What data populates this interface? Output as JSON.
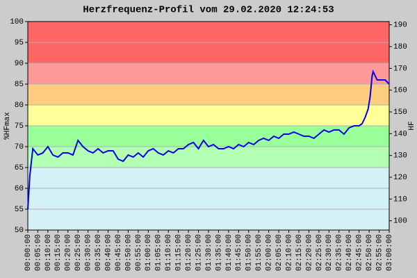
{
  "chart_data": {
    "type": "line",
    "title": "Herzfrequenz-Profil vom 29.02.2020 12:24:53",
    "y_label": "%HFmax",
    "y2_label": "HF",
    "xlim": [
      0,
      180
    ],
    "xticks": [
      {
        "value": 0,
        "label": "00:00:00"
      },
      {
        "value": 5,
        "label": "00:05:00"
      },
      {
        "value": 10,
        "label": "00:10:00"
      },
      {
        "value": 15,
        "label": "00:15:00"
      },
      {
        "value": 20,
        "label": "00:20:00"
      },
      {
        "value": 25,
        "label": "00:25:00"
      },
      {
        "value": 30,
        "label": "00:30:00"
      },
      {
        "value": 35,
        "label": "00:35:00"
      },
      {
        "value": 40,
        "label": "00:40:00"
      },
      {
        "value": 45,
        "label": "00:45:00"
      },
      {
        "value": 50,
        "label": "00:50:00"
      },
      {
        "value": 55,
        "label": "00:55:00"
      },
      {
        "value": 60,
        "label": "01:00:00"
      },
      {
        "value": 65,
        "label": "01:05:00"
      },
      {
        "value": 70,
        "label": "01:10:00"
      },
      {
        "value": 75,
        "label": "01:15:00"
      },
      {
        "value": 80,
        "label": "01:20:00"
      },
      {
        "value": 85,
        "label": "01:25:00"
      },
      {
        "value": 90,
        "label": "01:30:00"
      },
      {
        "value": 95,
        "label": "01:35:00"
      },
      {
        "value": 100,
        "label": "01:40:00"
      },
      {
        "value": 105,
        "label": "01:45:00"
      },
      {
        "value": 110,
        "label": "01:50:00"
      },
      {
        "value": 115,
        "label": "01:55:00"
      },
      {
        "value": 120,
        "label": "02:00:00"
      },
      {
        "value": 125,
        "label": "02:05:00"
      },
      {
        "value": 130,
        "label": "02:10:00"
      },
      {
        "value": 135,
        "label": "02:15:00"
      },
      {
        "value": 140,
        "label": "02:20:00"
      },
      {
        "value": 145,
        "label": "02:25:00"
      },
      {
        "value": 150,
        "label": "02:30:00"
      },
      {
        "value": 155,
        "label": "02:35:00"
      },
      {
        "value": 160,
        "label": "02:40:00"
      },
      {
        "value": 165,
        "label": "02:45:00"
      },
      {
        "value": 170,
        "label": "02:50:00"
      },
      {
        "value": 175,
        "label": "02:55:00"
      },
      {
        "value": 180,
        "label": "03:00:00"
      }
    ],
    "ylim": [
      50,
      100
    ],
    "yticks": [
      50,
      55,
      60,
      65,
      70,
      75,
      80,
      85,
      90,
      95,
      100
    ],
    "y2lim": [
      95.75,
      191.5
    ],
    "y2ticks": [
      100,
      110,
      120,
      130,
      140,
      150,
      160,
      170,
      180,
      190
    ],
    "grid": true,
    "zones": [
      {
        "from": 50,
        "to": 65,
        "color": "#d3f1f7"
      },
      {
        "from": 65,
        "to": 70,
        "color": "#b3ffb3"
      },
      {
        "from": 70,
        "to": 75,
        "color": "#99ff99"
      },
      {
        "from": 75,
        "to": 80,
        "color": "#ffff99"
      },
      {
        "from": 80,
        "to": 85,
        "color": "#ffcc80"
      },
      {
        "from": 85,
        "to": 90,
        "color": "#ff9999"
      },
      {
        "from": 90,
        "to": 100,
        "color": "#ff6666"
      }
    ],
    "x": [
      0,
      1,
      2.5,
      5,
      7.5,
      10,
      12.5,
      15,
      17.5,
      20,
      22.5,
      25,
      27.5,
      30,
      32.5,
      35,
      37.5,
      40,
      42.5,
      45,
      47.5,
      50,
      52.5,
      55,
      57.5,
      60,
      62.5,
      65,
      67.5,
      70,
      72.5,
      75,
      77.5,
      80,
      82.5,
      85,
      87.5,
      90,
      92.5,
      95,
      97.5,
      100,
      102.5,
      105,
      107.5,
      110,
      112.5,
      115,
      117.5,
      120,
      122.5,
      125,
      127.5,
      130,
      132.5,
      135,
      137.5,
      140,
      142.5,
      145,
      147.5,
      150,
      152.5,
      155,
      157.5,
      160,
      162.5,
      165,
      166.5,
      168,
      169.5,
      170.5,
      171.5,
      172,
      173,
      174,
      176,
      178,
      180
    ],
    "series": [
      {
        "color": "#0000ee",
        "values": [
          55,
          63,
          69.5,
          68,
          68.5,
          70,
          68,
          67.5,
          68.5,
          68.5,
          68,
          71.5,
          70,
          69,
          68.5,
          69.5,
          68.5,
          69,
          69,
          67,
          66.5,
          68,
          67.5,
          68.5,
          67.5,
          69,
          69.5,
          68.5,
          68,
          69,
          68.5,
          69.5,
          69.5,
          70.5,
          71,
          69.5,
          71.5,
          70,
          70.5,
          69.5,
          69.5,
          70,
          69.5,
          70.5,
          70,
          71,
          70.5,
          71.5,
          72,
          71.5,
          72.5,
          72,
          73,
          73,
          73.5,
          73,
          72.5,
          72.5,
          72,
          73,
          74,
          73.5,
          74,
          74,
          73,
          74.5,
          75,
          75,
          75.5,
          77,
          79,
          82,
          87,
          88,
          87,
          86,
          86,
          86,
          85
        ]
      }
    ]
  }
}
